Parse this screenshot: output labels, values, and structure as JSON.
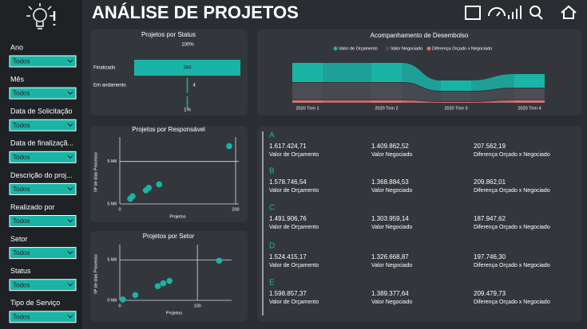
{
  "header": {
    "title": "ANÁLISE DE PROJETOS"
  },
  "filters": [
    {
      "label": "Ano",
      "value": "Todos"
    },
    {
      "label": "Mês",
      "value": "Todos"
    },
    {
      "label": "Data de Solicitação",
      "value": "Todos"
    },
    {
      "label": "Data de finalizaçã...",
      "value": "Todos"
    },
    {
      "label": "Descrição do proj...",
      "value": "Todos"
    },
    {
      "label": "Realizado por",
      "value": "Todos"
    },
    {
      "label": "Setor",
      "value": "Todos"
    },
    {
      "label": "Status",
      "value": "Todos"
    },
    {
      "label": "Tipo de Serviço",
      "value": "Todos"
    }
  ],
  "status_chart": {
    "type": "funnel",
    "title": "Projetos por Status",
    "top_label": "100%",
    "categories": [
      "Finalizado",
      "Em andamento",
      null
    ],
    "values": [
      384,
      4,
      1
    ],
    "value_labels": [
      "384",
      "4",
      "1%"
    ],
    "color": "#1ab4a6"
  },
  "disbursement_chart": {
    "type": "ribbon",
    "title": "Acompanhamento de Desembolso",
    "categories": [
      "2020 Trim 1",
      "2020 Trim 2",
      "2020 Trim 3",
      "2020 Trim 4"
    ],
    "series": [
      {
        "name": "Valor de Orçamento",
        "color": "#1ab4a6",
        "values": [
          2400000,
          2400000,
          1300000,
          1700000
        ]
      },
      {
        "name": "Valor Negociado",
        "color": "#4a4e54",
        "values": [
          2100000,
          2100000,
          1200000,
          1400000
        ]
      },
      {
        "name": "Diferença Orçado x Negociado",
        "color": "#e07070",
        "values": [
          300000,
          300000,
          100000,
          300000
        ]
      }
    ]
  },
  "responsavel_chart": {
    "type": "scatter",
    "title": "Projetos por Responsável",
    "x_label": "Projetos",
    "y_label": "Nº de dias Processo",
    "x": [
      18,
      22,
      45,
      50,
      68,
      189
    ],
    "values": [
      600,
      900,
      1600,
      1900,
      2300,
      6800
    ],
    "color": "#1ab4a6",
    "xlim": [
      0,
      200
    ],
    "ylim": [
      0,
      7500
    ],
    "xticks": [
      0,
      200
    ],
    "yticks": [
      {
        "value": 0,
        "label": "0 Mil"
      },
      {
        "value": 5000,
        "label": "5 Mil"
      }
    ]
  },
  "setor_chart": {
    "type": "scatter",
    "title": "Projetos por Setor",
    "x_label": "Projetos",
    "y_label": "Nº de dias Processo",
    "x": [
      4,
      20,
      49,
      56,
      64,
      128
    ],
    "values": [
      100,
      650,
      1750,
      2100,
      2400,
      4900
    ],
    "color": "#1ab4a6",
    "xlim": [
      0,
      140
    ],
    "ylim": [
      0,
      6500
    ],
    "xticks": [
      0,
      100
    ],
    "yticks": [
      {
        "value": 0,
        "label": "0 Mil"
      },
      {
        "value": 5000,
        "label": "5 Mil"
      }
    ]
  },
  "cards": [
    {
      "group": "A",
      "items": [
        {
          "value": "1.617.424,71",
          "label": "Valor de Orçamento"
        },
        {
          "value": "1.409.862,52",
          "label": "Valor Negociado"
        },
        {
          "value": "207.562,19",
          "label": "Diferença Orçado x Negociado"
        }
      ]
    },
    {
      "group": "B",
      "items": [
        {
          "value": "1.578.746,54",
          "label": "Valor de Orçamento"
        },
        {
          "value": "1.368.884,53",
          "label": "Valor Negociado"
        },
        {
          "value": "209.862,01",
          "label": "Diferença Orçado x Negociado"
        }
      ]
    },
    {
      "group": "C",
      "items": [
        {
          "value": "1.491.906,76",
          "label": "Valor de Orçamento"
        },
        {
          "value": "1.303.959,14",
          "label": "Valor Negociado"
        },
        {
          "value": "187.947,62",
          "label": "Diferença Orçado x Negociado"
        }
      ]
    },
    {
      "group": "D",
      "items": [
        {
          "value": "1.524.415,17",
          "label": "Valor de Orçamento"
        },
        {
          "value": "1.326.668,87",
          "label": "Valor Negociado"
        },
        {
          "value": "197.746,30",
          "label": "Diferença Orçado x Negociado"
        }
      ]
    },
    {
      "group": "E",
      "items": [
        {
          "value": "1.598.857,37",
          "label": "Valor de Orçamento"
        },
        {
          "value": "1.389.377,64",
          "label": "Valor Negociado"
        },
        {
          "value": "209.479,73",
          "label": "Diferença Orçado x Negociado"
        }
      ]
    }
  ]
}
